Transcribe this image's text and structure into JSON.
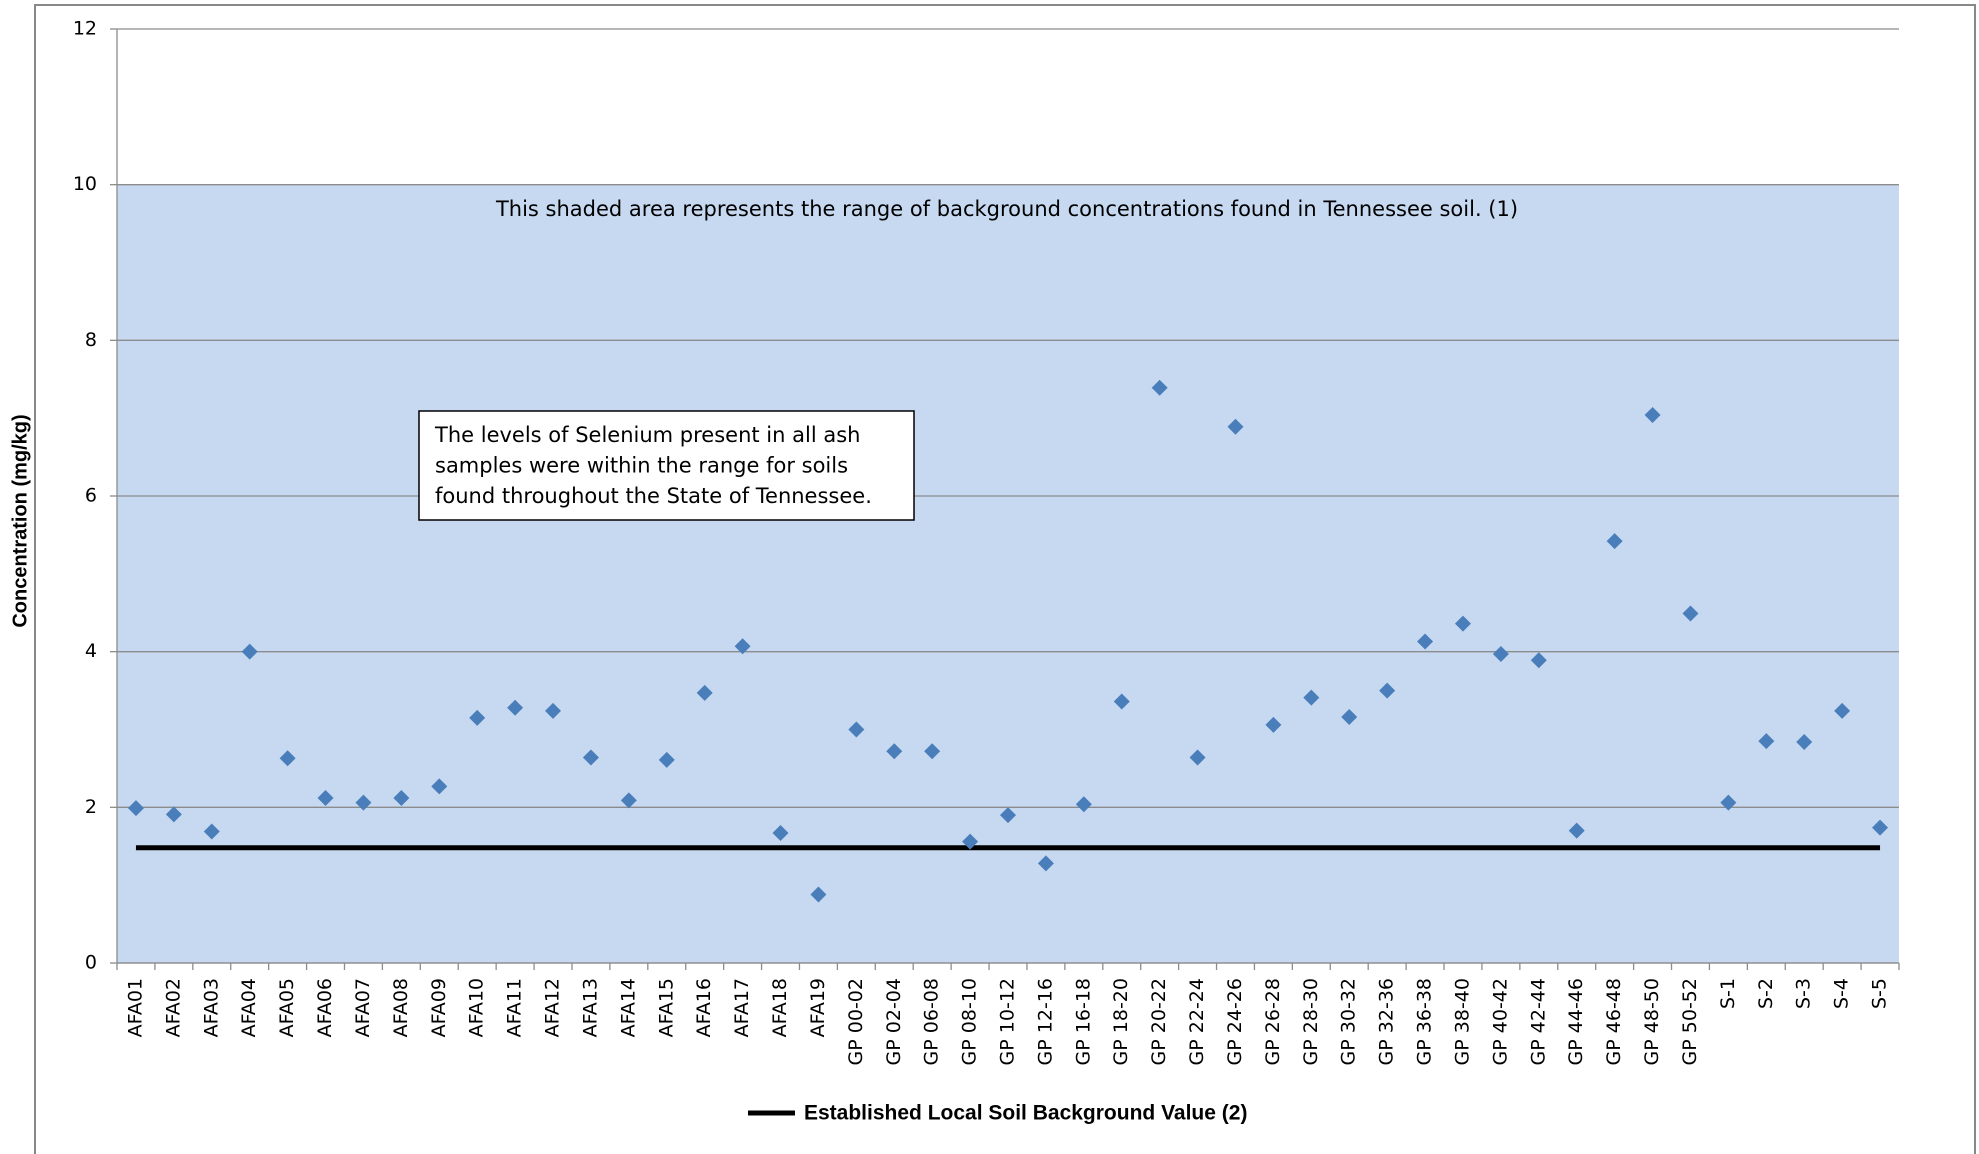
{
  "chart_data": {
    "type": "scatter",
    "y_label": "Concentration (mg/kg)",
    "categories": [
      "AFA01",
      "AFA02",
      "AFA03",
      "AFA04",
      "AFA05",
      "AFA06",
      "AFA07",
      "AFA08",
      "AFA09",
      "AFA10",
      "AFA11",
      "AFA12",
      "AFA13",
      "AFA14",
      "AFA15",
      "AFA16",
      "AFA17",
      "AFA18",
      "AFA19",
      "GP 00-02",
      "GP 02-04",
      "GP 06-08",
      "GP 08-10",
      "GP 10-12",
      "GP 12-16",
      "GP 16-18",
      "GP 18-20",
      "GP 20-22",
      "GP 22-24",
      "GP 24-26",
      "GP 26-28",
      "GP 28-30",
      "GP 30-32",
      "GP 32-36",
      "GP 36-38",
      "GP 38-40",
      "GP 40-42",
      "GP 42-44",
      "GP 44-46",
      "GP 46-48",
      "GP 48-50",
      "GP 50-52",
      "S-1",
      "S-2",
      "S-3",
      "S-4",
      "S-5"
    ],
    "series": [
      {
        "color": "#4a7ebb",
        "values": [
          1.99,
          1.91,
          1.69,
          4.0,
          2.63,
          2.12,
          2.06,
          2.12,
          2.27,
          3.15,
          3.28,
          3.24,
          2.64,
          2.09,
          2.61,
          3.47,
          4.07,
          1.67,
          0.88,
          3.0,
          2.72,
          2.72,
          1.56,
          1.9,
          1.28,
          2.04,
          3.36,
          7.39,
          2.64,
          6.89,
          3.06,
          3.41,
          3.16,
          3.5,
          4.13,
          4.36,
          3.97,
          3.89,
          1.7,
          5.42,
          7.04,
          4.49,
          2.06,
          2.85,
          2.84,
          3.24,
          1.74
        ]
      }
    ],
    "reference_line": {
      "name": "Established Local Soil Background Value (2)",
      "color": "#000000",
      "value": 1.48
    },
    "shaded_range": {
      "range": [
        0,
        10
      ],
      "color": "#c6d9f1",
      "label": "This shaded area represents the range of background concentrations found in Tennessee soil. (1)"
    },
    "annotation": [
      "The levels of Selenium present in all ash",
      "samples were within the range for soils",
      "found throughout the State of Tennessee."
    ],
    "ylim": [
      0,
      12
    ],
    "yticks": [
      0,
      2,
      4,
      6,
      8,
      10,
      12
    ],
    "grid": true,
    "legend": "bottom"
  }
}
